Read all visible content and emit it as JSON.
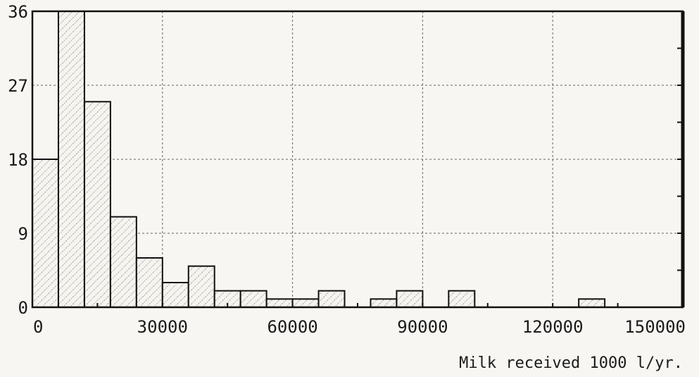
{
  "chart_data": {
    "type": "bar",
    "xlabel": "Milk received 1000 l/yr.",
    "ylabel": "",
    "xlim": [
      0,
      150000
    ],
    "ylim": [
      0,
      36
    ],
    "bin_width": 6000,
    "bins": [
      {
        "x0": 0,
        "x1": 6000,
        "count": 18
      },
      {
        "x0": 6000,
        "x1": 12000,
        "count": 36
      },
      {
        "x0": 12000,
        "x1": 18000,
        "count": 25
      },
      {
        "x0": 18000,
        "x1": 24000,
        "count": 11
      },
      {
        "x0": 24000,
        "x1": 30000,
        "count": 6
      },
      {
        "x0": 30000,
        "x1": 36000,
        "count": 3
      },
      {
        "x0": 36000,
        "x1": 42000,
        "count": 5
      },
      {
        "x0": 42000,
        "x1": 48000,
        "count": 2
      },
      {
        "x0": 48000,
        "x1": 54000,
        "count": 2
      },
      {
        "x0": 54000,
        "x1": 60000,
        "count": 1
      },
      {
        "x0": 60000,
        "x1": 66000,
        "count": 1
      },
      {
        "x0": 66000,
        "x1": 72000,
        "count": 2
      },
      {
        "x0": 78000,
        "x1": 84000,
        "count": 1
      },
      {
        "x0": 84000,
        "x1": 90000,
        "count": 2
      },
      {
        "x0": 96000,
        "x1": 102000,
        "count": 2
      },
      {
        "x0": 126000,
        "x1": 132000,
        "count": 1
      }
    ],
    "x_ticks": [
      {
        "value": 0,
        "label": "0"
      },
      {
        "value": 30000,
        "label": "30000"
      },
      {
        "value": 60000,
        "label": "60000"
      },
      {
        "value": 90000,
        "label": "90000"
      },
      {
        "value": 120000,
        "label": "120000"
      },
      {
        "value": 150000,
        "label": "150000"
      }
    ],
    "y_ticks": [
      {
        "value": 0,
        "label": "0"
      },
      {
        "value": 9,
        "label": "9"
      },
      {
        "value": 18,
        "label": "18"
      },
      {
        "value": 27,
        "label": "27"
      },
      {
        "value": 36,
        "label": "36"
      }
    ],
    "grid": true,
    "legend": "none"
  }
}
